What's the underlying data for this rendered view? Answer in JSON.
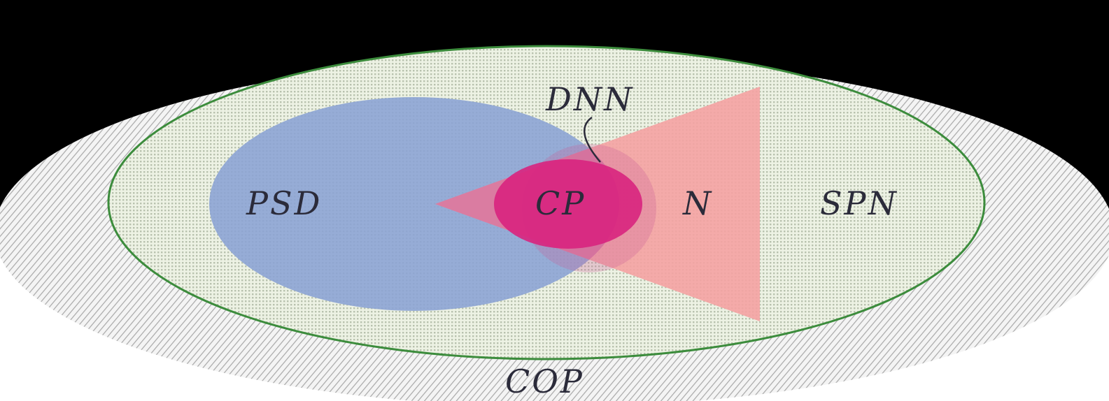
{
  "labels": {
    "cop": "COP",
    "spn": "SPN",
    "psd": "PSD",
    "cp": "CP",
    "n": "N",
    "dnn": "DNN"
  },
  "colors": {
    "background_top": "#000000",
    "outer_fill": "#f3f3f3",
    "outer_hatch": "#b0b0b0",
    "inner_fill": "#e8f0dc",
    "inner_border": "#3c8c3c",
    "psd_fill": "#8aa2d4",
    "n_fill": "#f4a2a2",
    "overlap_fill": "#cc5c9c",
    "cp_fill": "#d8247e",
    "text": "#2b2b3a"
  }
}
